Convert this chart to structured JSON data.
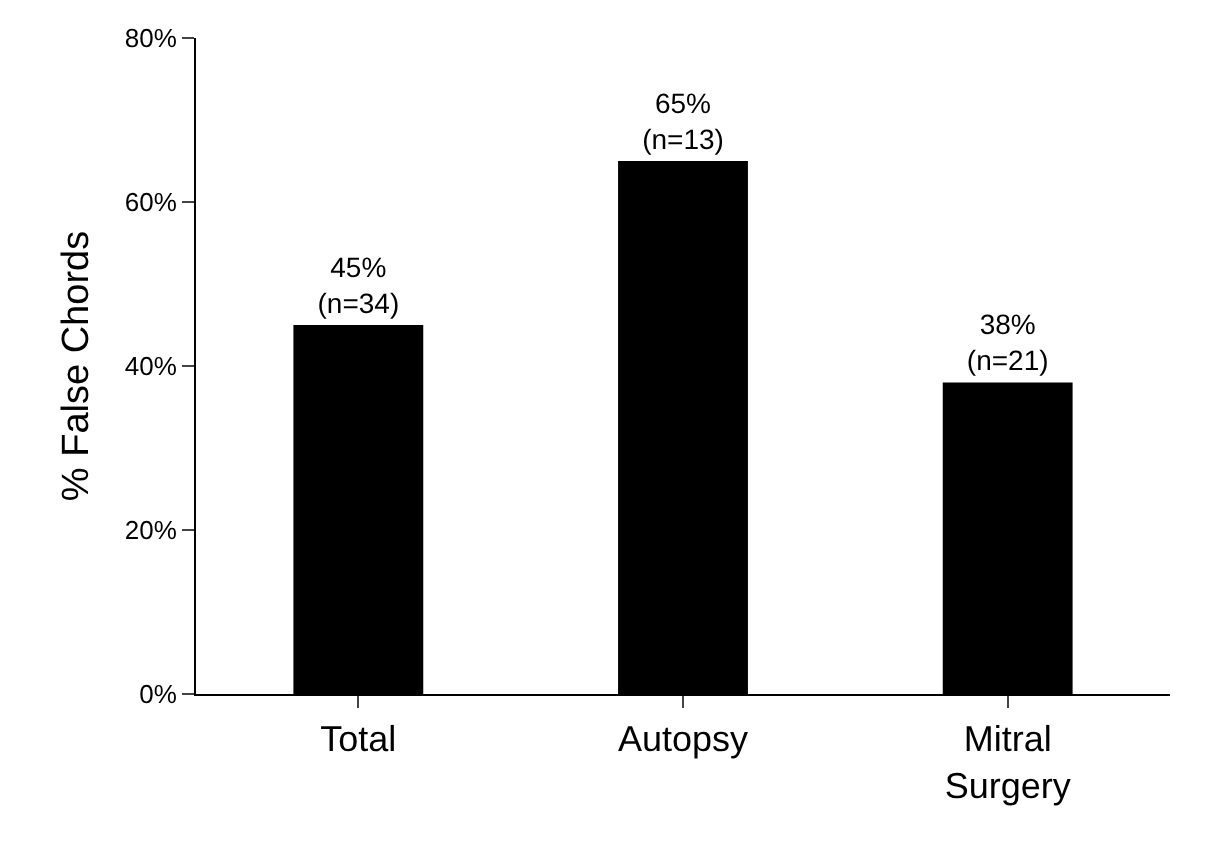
{
  "chart_data": {
    "type": "bar",
    "ylabel": "% False Chords",
    "categories": [
      "Total",
      "Autopsy",
      "Mitral\nSurgery"
    ],
    "values": [
      45,
      65,
      38
    ],
    "color": "#000000",
    "value_labels": [
      "45%\n(n=34)",
      "65%\n(n=13)",
      "38%\n(n=21)"
    ],
    "ylim": [
      0,
      80
    ],
    "yticks": [
      {
        "value": 0,
        "label": "0%"
      },
      {
        "value": 20,
        "label": "20%"
      },
      {
        "value": 40,
        "label": "40%"
      },
      {
        "value": 60,
        "label": "60%"
      },
      {
        "value": 80,
        "label": "80%"
      }
    ],
    "grid": false,
    "legend": false
  }
}
